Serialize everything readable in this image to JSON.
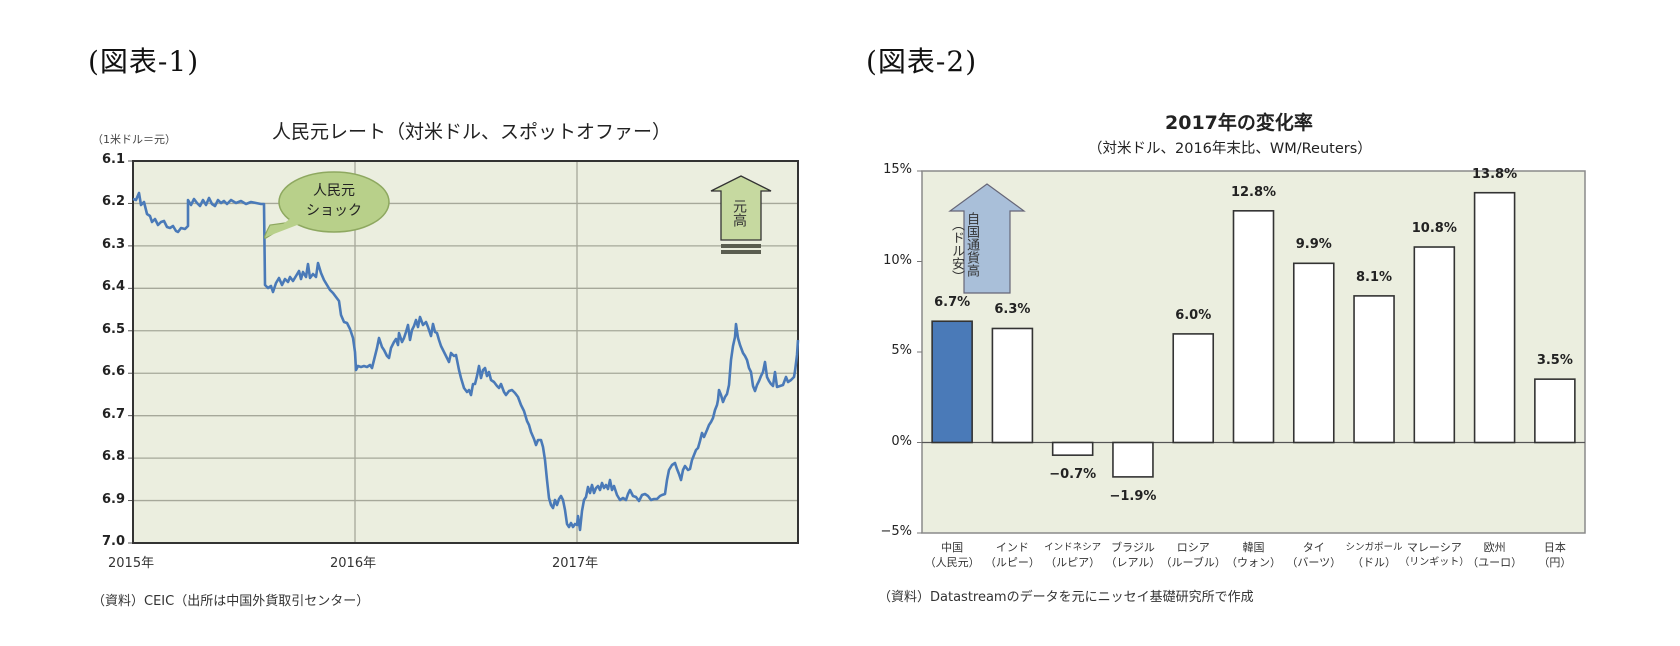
{
  "figures": [
    {
      "label": "(図表-1)",
      "title": "人民元レート（対米ドル、スポットオファー）",
      "unit": "（1米ドル＝元）",
      "source": "（資料）CEIC（出所は中国外貨取引センター）",
      "annotation_bubble": [
        "人民元",
        "ショック"
      ],
      "annotation_arrow": "元高"
    },
    {
      "label": "(図表-2)",
      "title": "2017年の変化率",
      "subtitle": "（対米ドル、2016年末比、WM/Reuters）",
      "source": "（資料）Datastreamのデータを元にニッセイ基礎研究所で作成",
      "annotation_arrow": "自国通貨高（ドル安）",
      "annotation_arrow_main": "自国通貨高",
      "annotation_arrow_sub": "（ドル安）"
    }
  ],
  "colors": {
    "plot_bg": "#ebeedf",
    "line": "#4a7ab8",
    "china_bar": "#4a7ab8",
    "other_bar": "#ffffff",
    "bubble": "#b8d08a",
    "up_arrow_1": "#c6d9a0",
    "up_arrow_2": "#a9bfd9"
  },
  "chart_data": [
    {
      "type": "line",
      "title": "人民元レート（対米ドル、スポットオファー）",
      "ylabel": "（1米ドル＝元）",
      "xlabel": "",
      "y_inverted": true,
      "ylim": [
        6.1,
        7.0
      ],
      "yticks": [
        "6.1",
        "6.2",
        "6.3",
        "6.4",
        "6.5",
        "6.6",
        "6.7",
        "6.8",
        "6.9",
        "7.0"
      ],
      "xticks": [
        "2015年",
        "2016年",
        "2017年"
      ],
      "grid": true,
      "series": [
        {
          "name": "人民元レート",
          "x": [
            "2015-01",
            "2015-02",
            "2015-03",
            "2015-04",
            "2015-05",
            "2015-06",
            "2015-07",
            "2015-08a",
            "2015-08b",
            "2015-09",
            "2015-10",
            "2015-11",
            "2015-12",
            "2016-01",
            "2016-02",
            "2016-03",
            "2016-04",
            "2016-05",
            "2016-06",
            "2016-07",
            "2016-08",
            "2016-09",
            "2016-10",
            "2016-11",
            "2016-12",
            "2017-01",
            "2017-02",
            "2017-03",
            "2017-04",
            "2017-05",
            "2017-06",
            "2017-07",
            "2017-08",
            "2017-09",
            "2017-10",
            "2017-11",
            "2017-12"
          ],
          "values": [
            6.21,
            6.25,
            6.26,
            6.2,
            6.2,
            6.21,
            6.21,
            6.21,
            6.4,
            6.37,
            6.34,
            6.39,
            6.48,
            6.58,
            6.55,
            6.49,
            6.47,
            6.56,
            6.63,
            6.67,
            6.66,
            6.67,
            6.76,
            6.89,
            6.96,
            6.88,
            6.89,
            6.9,
            6.9,
            6.87,
            6.79,
            6.74,
            6.66,
            6.52,
            6.63,
            6.62,
            6.54
          ]
        }
      ],
      "annotations": [
        "人民元ショック",
        "元高"
      ]
    },
    {
      "type": "bar",
      "title": "2017年の変化率",
      "subtitle": "（対米ドル、2016年末比、WM/Reuters）",
      "categories": [
        "中国（人民元）",
        "インド（ルピー）",
        "インドネシア（ルピア）",
        "ブラジル（レアル）",
        "ロシア（ルーブル）",
        "韓国（ウォン）",
        "タイ（バーツ）",
        "シンガポール（ドル）",
        "マレーシア（リンギット）",
        "欧州（ユーロ）",
        "日本（円）"
      ],
      "values": [
        6.7,
        6.3,
        -0.7,
        -1.9,
        6.0,
        12.8,
        9.9,
        8.1,
        10.8,
        13.8,
        3.5
      ],
      "value_labels": [
        "6.7%",
        "6.3%",
        "−0.7%",
        "−1.9%",
        "6.0%",
        "12.8%",
        "9.9%",
        "8.1%",
        "10.8%",
        "13.8%",
        "3.5%"
      ],
      "ylabel": "",
      "xlabel": "",
      "ylim": [
        -5,
        15
      ],
      "yticks": [
        "15%",
        "10%",
        "5%",
        "0%",
        "−5%"
      ],
      "grid": false,
      "highlight": "中国（人民元）",
      "annotations": [
        "自国通貨高（ドル安）"
      ]
    }
  ],
  "bar_labels": [
    {
      "l1": "中国",
      "l2": "（人民元）"
    },
    {
      "l1": "インド",
      "l2": "（ルピー）"
    },
    {
      "l1": "インドネシア",
      "l2": "（ルピア）"
    },
    {
      "l1": "ブラジル",
      "l2": "（レアル）"
    },
    {
      "l1": "ロシア",
      "l2": "（ルーブル）"
    },
    {
      "l1": "韓国",
      "l2": "（ウォン）"
    },
    {
      "l1": "タイ",
      "l2": "（バーツ）"
    },
    {
      "l1": "シンガポール",
      "l2": "（ドル）"
    },
    {
      "l1": "マレーシア",
      "l2": "（リンギット）"
    },
    {
      "l1": "欧州",
      "l2": "（ユーロ）"
    },
    {
      "l1": "日本",
      "l2": "（円）"
    }
  ]
}
